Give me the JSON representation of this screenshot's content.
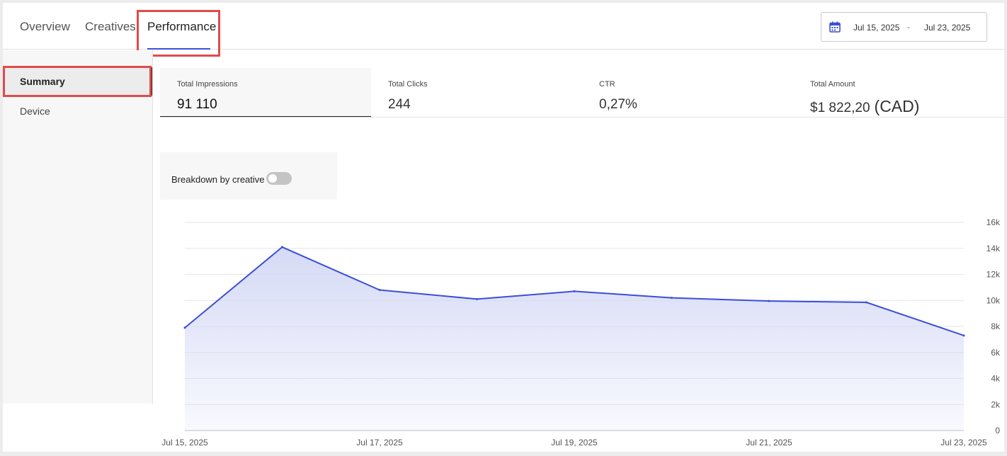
{
  "tabs": [
    {
      "label": "Overview"
    },
    {
      "label": "Creatives"
    },
    {
      "label": "Performance"
    }
  ],
  "date_range": {
    "start": "Jul 15, 2025",
    "separator": "-",
    "end": "Jul 23, 2025"
  },
  "sidebar": {
    "items": [
      {
        "label": "Summary"
      },
      {
        "label": "Device"
      }
    ]
  },
  "metrics": [
    {
      "label": "Total Impressions",
      "value": "91 110"
    },
    {
      "label": "Total Clicks",
      "value": "244"
    },
    {
      "label": "CTR",
      "value": "0,27%"
    },
    {
      "label": "Total Amount",
      "value": "$1 822,20",
      "currency": "(CAD)"
    }
  ],
  "breakdown": {
    "label": "Breakdown by creative",
    "enabled": false
  },
  "colors": {
    "accent": "#3b4fd8",
    "fill_top": "#d3d8f5",
    "highlight": "#e24a4a"
  },
  "icons": {
    "calendar": "calendar-icon"
  },
  "chart_data": {
    "type": "area",
    "x": [
      "Jul 15, 2025",
      "Jul 16, 2025",
      "Jul 17, 2025",
      "Jul 18, 2025",
      "Jul 19, 2025",
      "Jul 20, 2025",
      "Jul 21, 2025",
      "Jul 22, 2025",
      "Jul 23, 2025"
    ],
    "x_tick_labels": [
      "Jul 15, 2025",
      "Jul 17, 2025",
      "Jul 19, 2025",
      "Jul 21, 2025",
      "Jul 23, 2025"
    ],
    "series": [
      {
        "values": [
          7900,
          14100,
          10800,
          10100,
          10700,
          10200,
          9950,
          9850,
          7300
        ]
      }
    ],
    "y_ticks": [
      "0",
      "2k",
      "4k",
      "6k",
      "8k",
      "10k",
      "12k",
      "14k",
      "16k"
    ],
    "ylim": [
      0,
      16000
    ],
    "grid": true,
    "y_axis_side": "right"
  }
}
